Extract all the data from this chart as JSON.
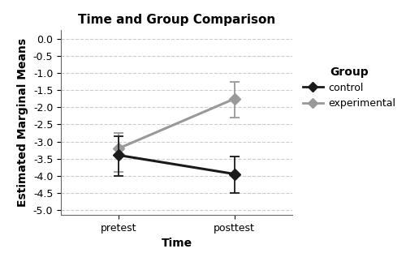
{
  "title": "Time and Group Comparison",
  "xlabel": "Time",
  "ylabel": "Estimated Marginal Means",
  "x_labels": [
    "pretest",
    "posttest"
  ],
  "x_positions": [
    0,
    1
  ],
  "control": {
    "means": [
      -3.4,
      -3.95
    ],
    "ci_lower": [
      -4.0,
      -4.5
    ],
    "ci_upper": [
      -2.85,
      -3.45
    ],
    "color": "#1a1a1a",
    "label": "control"
  },
  "experimental": {
    "means": [
      -3.2,
      -1.75
    ],
    "ci_lower": [
      -3.9,
      -2.3
    ],
    "ci_upper": [
      -2.75,
      -1.25
    ],
    "color": "#999999",
    "label": "experimental"
  },
  "ylim": [
    -5.15,
    0.25
  ],
  "yticks": [
    0.0,
    -0.5,
    -1.0,
    -1.5,
    -2.0,
    -2.5,
    -3.0,
    -3.5,
    -4.0,
    -4.5,
    -5.0
  ],
  "legend_title": "Group",
  "background_color": "#ffffff",
  "grid_color": "#cccccc",
  "title_fontsize": 11,
  "axis_label_fontsize": 10,
  "tick_fontsize": 9,
  "legend_fontsize": 9,
  "legend_title_fontsize": 10
}
